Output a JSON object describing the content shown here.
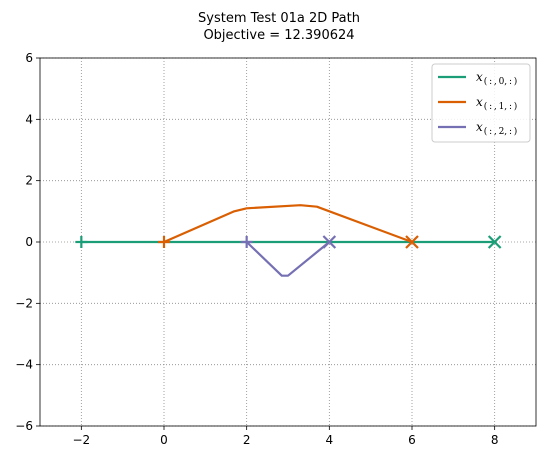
{
  "chart_data": {
    "type": "line",
    "title": "System Test 01a 2D Path",
    "subtitle": "Objective = 12.390624",
    "xlim": [
      -3,
      9
    ],
    "ylim": [
      -6,
      6
    ],
    "xticks": [
      -2,
      0,
      2,
      4,
      6,
      8
    ],
    "yticks": [
      -6,
      -4,
      -2,
      0,
      2,
      4,
      6
    ],
    "xtick_labels": [
      "−2",
      "0",
      "2",
      "4",
      "6",
      "8"
    ],
    "ytick_labels": [
      "−6",
      "−4",
      "−2",
      "0",
      "2",
      "4",
      "6"
    ],
    "grid": true,
    "legend_position": "top-right",
    "series": [
      {
        "name": "x(:,0,:)",
        "legend_main": "x",
        "legend_sub": "( : , 0, : )",
        "color": "#1b9e77",
        "x": [
          -2,
          8
        ],
        "y": [
          0,
          0
        ],
        "start": [
          -2,
          0
        ],
        "end": [
          8,
          0
        ]
      },
      {
        "name": "x(:,1,:)",
        "legend_main": "x",
        "legend_sub": "( : , 1, : )",
        "color": "#d95f02",
        "x": [
          0,
          1.7,
          2.0,
          3.3,
          3.7,
          6.0
        ],
        "y": [
          0,
          1.0,
          1.1,
          1.2,
          1.15,
          0
        ],
        "start": [
          0,
          0
        ],
        "end": [
          6,
          0
        ]
      },
      {
        "name": "x(:,2,:)",
        "legend_main": "x",
        "legend_sub": "( : , 2, : )",
        "color": "#7570b3",
        "x": [
          2,
          2.85,
          3.0,
          4.0
        ],
        "y": [
          0,
          -1.1,
          -1.1,
          0
        ],
        "start": [
          2,
          0
        ],
        "end": [
          4,
          0
        ]
      }
    ]
  }
}
